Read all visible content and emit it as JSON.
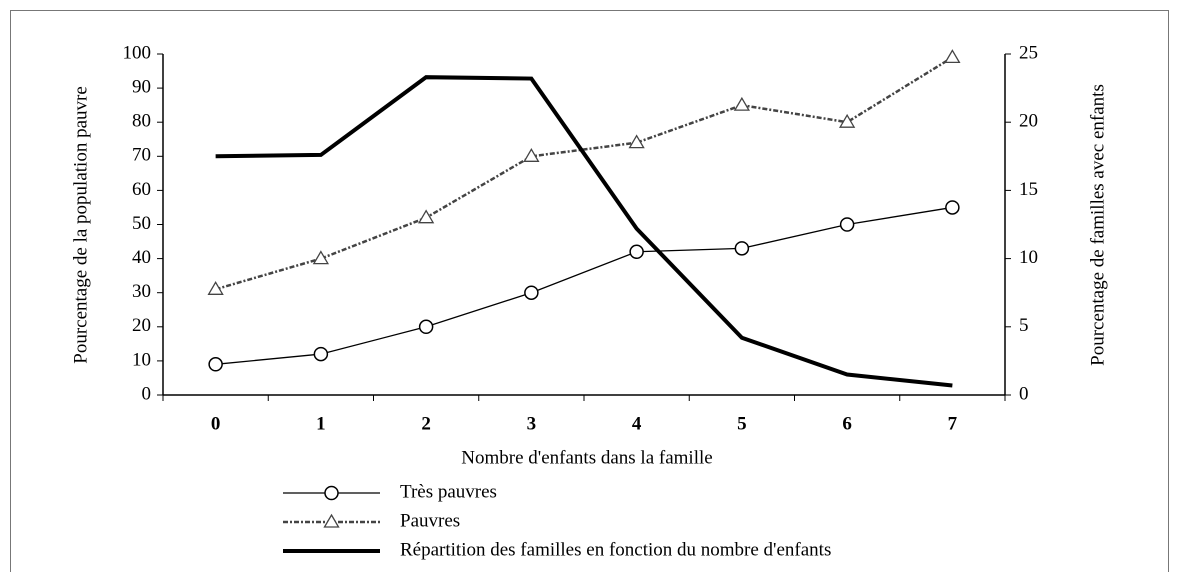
{
  "chart_data": {
    "type": "line",
    "x_label": "Nombre d'enfants dans la famille",
    "y_label": "Pourcentage de la population pauvre",
    "y2_label": "Pourcentage de familles avec enfants",
    "categories": [
      "0",
      "1",
      "2",
      "3",
      "4",
      "5",
      "6",
      "7"
    ],
    "series": [
      {
        "name": "Très pauvres",
        "color": "#000000",
        "marker": "circle",
        "values": [
          9,
          12,
          20,
          30,
          42,
          43,
          50,
          55
        ]
      },
      {
        "name": "Pauvres",
        "color": "#444444",
        "marker": "triangle",
        "dash": true,
        "values": [
          31,
          40,
          52,
          70,
          74,
          85,
          80,
          99
        ]
      },
      {
        "name": "Répartition des familles en fonction du nombre d'enfants",
        "color": "#000000",
        "axis": "y2",
        "line_width": 4,
        "values": [
          17.5,
          17.6,
          23.3,
          23.2,
          12.2,
          4.2,
          1.5,
          0.7
        ]
      }
    ],
    "ylim": [
      0,
      100
    ],
    "yticks": [
      0,
      10,
      20,
      30,
      40,
      50,
      60,
      70,
      80,
      90,
      100
    ],
    "y2lim": [
      0,
      25
    ],
    "y2ticks": [
      0,
      5,
      10,
      15,
      20,
      25
    ],
    "legend": "bottom"
  }
}
